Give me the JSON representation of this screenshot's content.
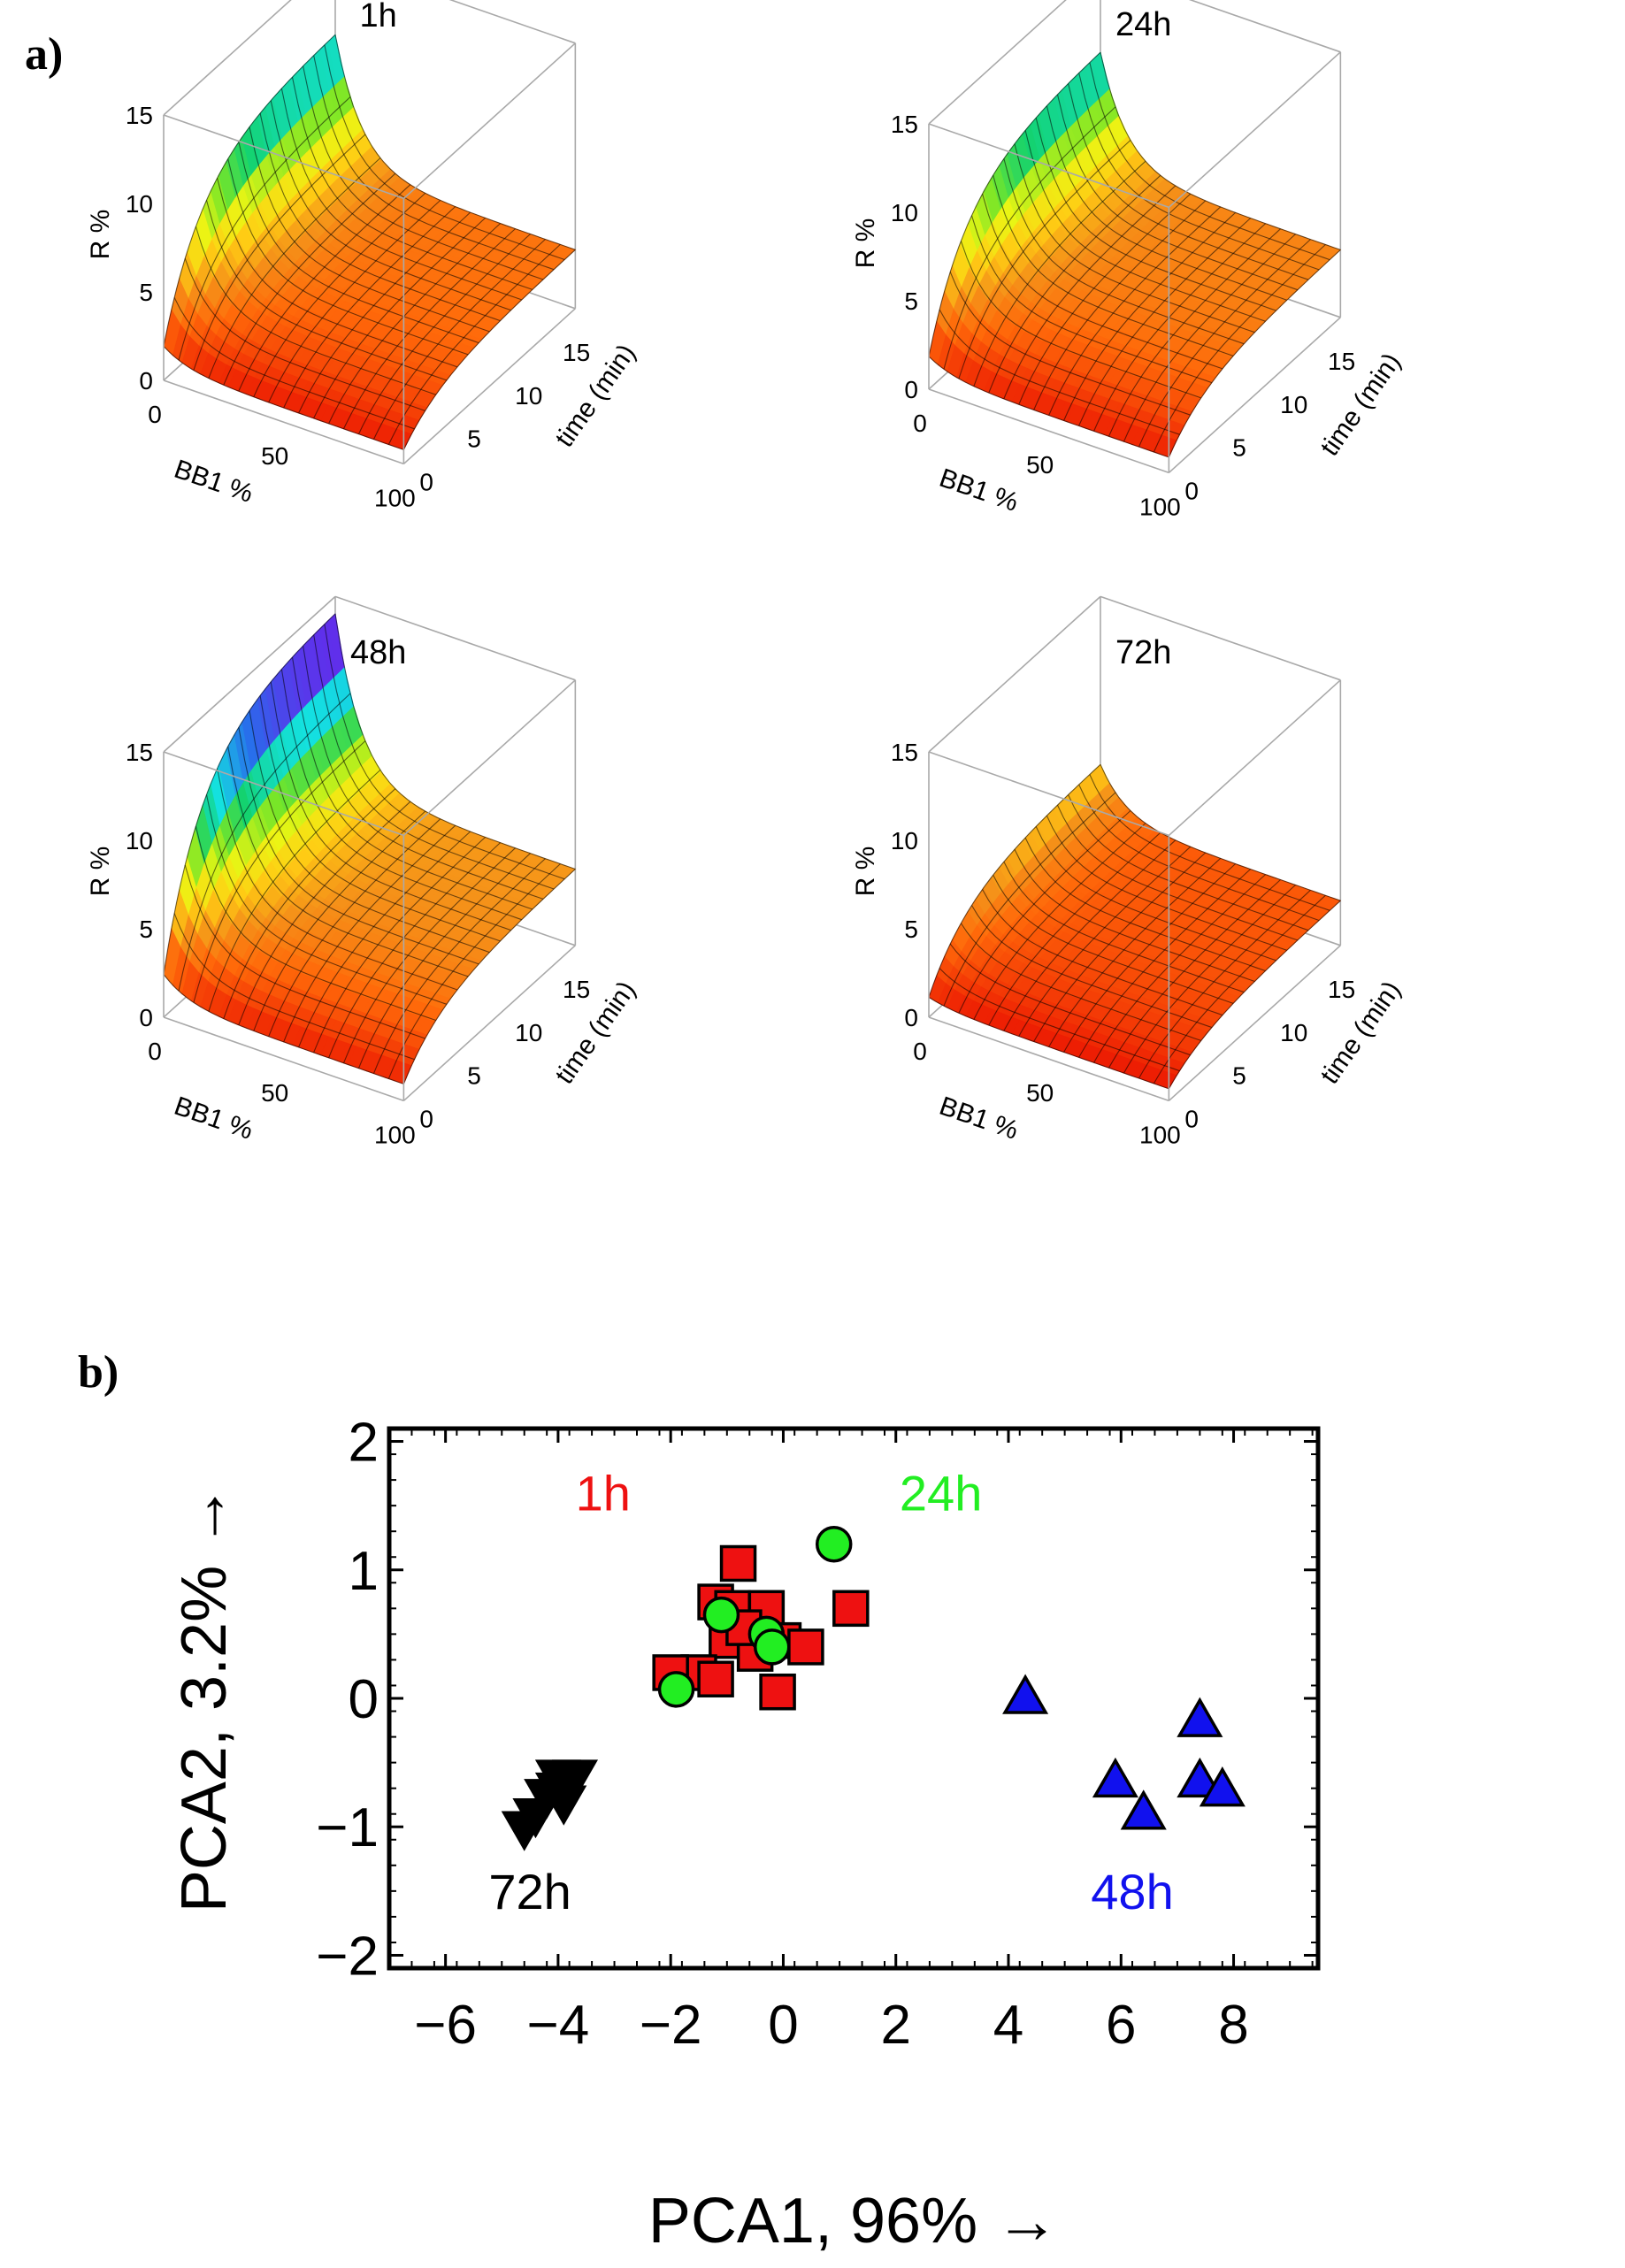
{
  "panel_a_label": "a)",
  "panel_b_label": "b)",
  "colors": {
    "g1h": "#ee1111",
    "g24h": "#22ee22",
    "g48h": "#1111ee",
    "g72h": "#000000"
  },
  "chart_data": [
    {
      "type": "surface3d",
      "title": "1h",
      "x_label": "BB1 %",
      "y_label": "time (min)",
      "z_label": "R %",
      "x_ticks": [
        "0",
        "50",
        "100"
      ],
      "y_ticks": [
        "0",
        "5",
        "10",
        "15"
      ],
      "z_ticks": [
        "0",
        "5",
        "10",
        "15"
      ],
      "xlim": [
        0,
        100
      ],
      "ylim": [
        0,
        18
      ],
      "zlim": [
        0,
        15
      ],
      "peak_R": 10.5,
      "plateau_R": 3.0
    },
    {
      "type": "surface3d",
      "title": "24h",
      "x_label": "BB1 %",
      "y_label": "time (min)",
      "z_label": "R %",
      "x_ticks": [
        "0",
        "50",
        "100"
      ],
      "y_ticks": [
        "0",
        "5",
        "10",
        "15"
      ],
      "z_ticks": [
        "0",
        "5",
        "10",
        "15"
      ],
      "xlim": [
        0,
        100
      ],
      "ylim": [
        0,
        18
      ],
      "zlim": [
        0,
        15
      ],
      "peak_R": 10.0,
      "plateau_R": 3.5
    },
    {
      "type": "surface3d",
      "title": "48h",
      "x_label": "BB1 %",
      "y_label": "time (min)",
      "z_label": "R %",
      "x_ticks": [
        "0",
        "50",
        "100"
      ],
      "y_ticks": [
        "0",
        "5",
        "10",
        "15"
      ],
      "z_ticks": [
        "0",
        "5",
        "10",
        "15"
      ],
      "xlim": [
        0,
        100
      ],
      "ylim": [
        0,
        18
      ],
      "zlim": [
        0,
        15
      ],
      "peak_R": 13.8,
      "plateau_R": 4.0
    },
    {
      "type": "surface3d",
      "title": "72h",
      "x_label": "BB1 %",
      "y_label": "time (min)",
      "z_label": "R %",
      "x_ticks": [
        "0",
        "50",
        "100"
      ],
      "y_ticks": [
        "0",
        "5",
        "10",
        "15"
      ],
      "z_ticks": [
        "0",
        "5",
        "10",
        "15"
      ],
      "xlim": [
        0,
        100
      ],
      "ylim": [
        0,
        18
      ],
      "zlim": [
        0,
        15
      ],
      "peak_R": 5.2,
      "plateau_R": 2.2
    },
    {
      "type": "scatter",
      "xlabel": "PCA1, 96% →",
      "ylabel": "PCA2, 3.2% →",
      "xlim": [
        -7,
        9.5
      ],
      "ylim": [
        -2.1,
        2.1
      ],
      "x_ticks": [
        -6,
        -4,
        -2,
        0,
        2,
        4,
        6,
        8
      ],
      "y_ticks": [
        -2,
        -1,
        0,
        1,
        2
      ],
      "x_tick_labels": [
        "−6",
        "−4",
        "−2",
        "0",
        "2",
        "4",
        "6",
        "8"
      ],
      "y_tick_labels": [
        "−2",
        "−1",
        "0",
        "1",
        "2"
      ],
      "group_labels": [
        {
          "text": "1h",
          "group": "1h",
          "x": -3.2,
          "y": 1.6
        },
        {
          "text": "24h",
          "group": "24h",
          "x": 2.8,
          "y": 1.6
        },
        {
          "text": "72h",
          "group": "72h",
          "x": -4.5,
          "y": -1.5
        },
        {
          "text": "48h",
          "group": "48h",
          "x": 6.2,
          "y": -1.5
        }
      ],
      "series": [
        {
          "name": "1h",
          "marker": "square",
          "points": [
            [
              -0.8,
              1.05
            ],
            [
              -1.2,
              0.75
            ],
            [
              -0.9,
              0.7
            ],
            [
              -0.6,
              0.5
            ],
            [
              -0.3,
              0.7
            ],
            [
              -1.0,
              0.45
            ],
            [
              -0.5,
              0.35
            ],
            [
              0.0,
              0.45
            ],
            [
              0.4,
              0.4
            ],
            [
              1.2,
              0.7
            ],
            [
              -1.5,
              0.2
            ],
            [
              -1.2,
              0.15
            ],
            [
              -2.0,
              0.2
            ],
            [
              -0.1,
              0.05
            ],
            [
              -0.7,
              0.55
            ]
          ]
        },
        {
          "name": "24h",
          "marker": "circle",
          "points": [
            [
              0.9,
              1.2
            ],
            [
              -1.1,
              0.65
            ],
            [
              -0.3,
              0.5
            ],
            [
              -0.2,
              0.4
            ],
            [
              -1.9,
              0.07
            ]
          ]
        },
        {
          "name": "48h",
          "marker": "triangle-up",
          "points": [
            [
              4.3,
              0.0
            ],
            [
              5.9,
              -0.65
            ],
            [
              6.4,
              -0.9
            ],
            [
              7.4,
              -0.18
            ],
            [
              7.4,
              -0.65
            ],
            [
              7.8,
              -0.72
            ]
          ]
        },
        {
          "name": "72h",
          "marker": "triangle-down",
          "points": [
            [
              -4.0,
              -0.6
            ],
            [
              -3.7,
              -0.6
            ],
            [
              -4.2,
              -0.75
            ],
            [
              -3.9,
              -0.8
            ],
            [
              -4.4,
              -0.9
            ],
            [
              -4.6,
              -1.0
            ],
            [
              -4.0,
              -0.7
            ]
          ]
        }
      ]
    }
  ]
}
